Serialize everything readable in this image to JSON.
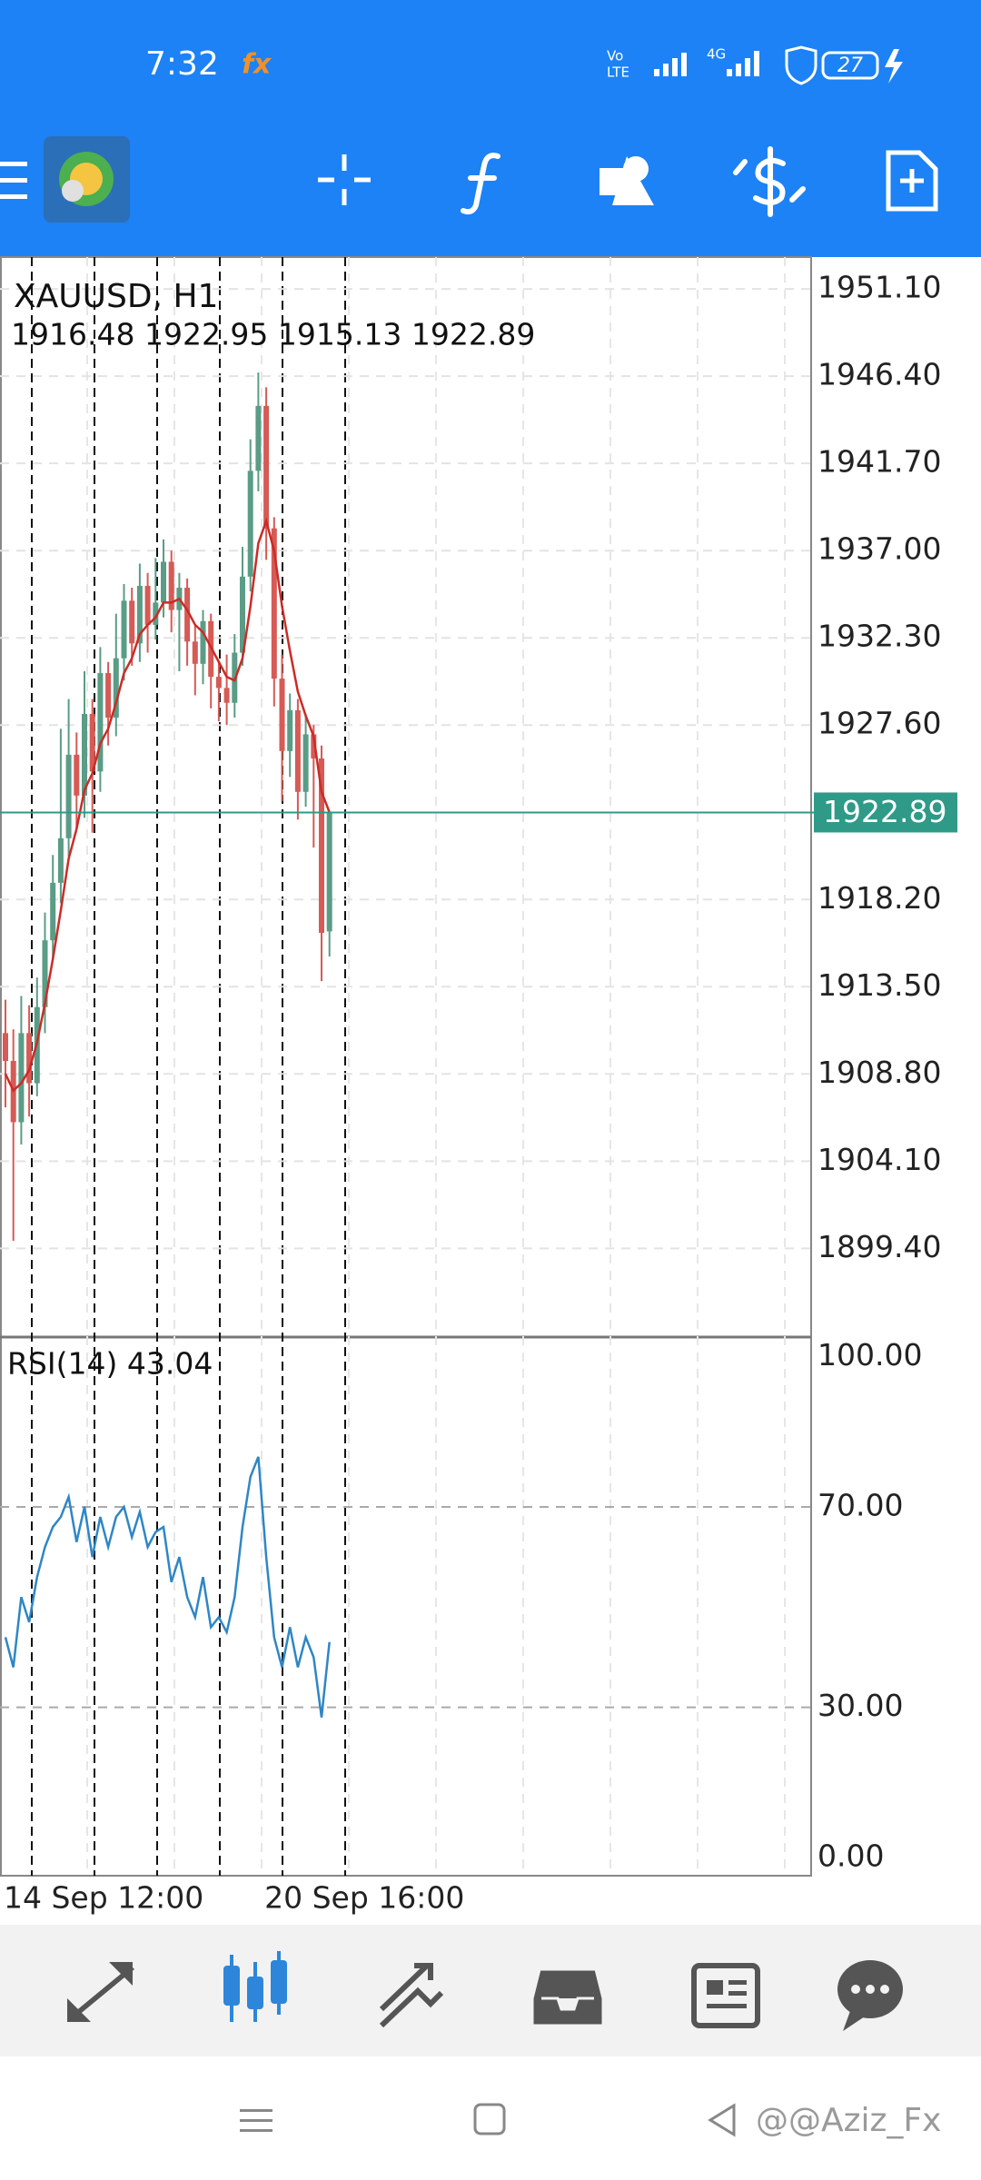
{
  "status_bar": {
    "time": "7:32",
    "app_badge": "fx",
    "volte_top": "Vo",
    "volte_bottom": "LTE",
    "network": "4G",
    "battery": "27"
  },
  "chart_data": [
    {
      "type": "candlestick",
      "title": "XAUUSD, H1",
      "subtitle": "1916.48 1922.95 1915.13 1922.89",
      "categories": [
        "14 Sep 12:00",
        null,
        null,
        null,
        null,
        null,
        null,
        null,
        null,
        null,
        null,
        null,
        null,
        null,
        null,
        null,
        null,
        null,
        null,
        null,
        null,
        null,
        null,
        null,
        null,
        null,
        null,
        null,
        null,
        null,
        null,
        null,
        null,
        "20 Sep 16:00",
        null,
        null,
        null,
        null,
        null,
        null,
        null,
        null
      ],
      "open": [
        1911.0,
        1909.5,
        1906.2,
        1911.0,
        1908.3,
        1912.4,
        1916.0,
        1919.1,
        1921.5,
        1926.0,
        1923.8,
        1928.2,
        1925.1,
        1930.4,
        1928.0,
        1931.2,
        1934.3,
        1932.0,
        1935.1,
        1933.0,
        1934.2,
        1936.4,
        1933.8,
        1935.0,
        1932.1,
        1930.9,
        1933.2,
        1930.2,
        1929.6,
        1928.8,
        1931.5,
        1935.6,
        1941.3,
        1944.8,
        1938.2,
        1930.1,
        1926.2,
        1928.4,
        1924.0,
        1927.1,
        1925.8,
        1916.48
      ],
      "high": [
        1912.8,
        1911.2,
        1913.0,
        1912.5,
        1914.0,
        1917.5,
        1920.6,
        1927.4,
        1929.0,
        1927.2,
        1930.5,
        1929.0,
        1931.8,
        1931.0,
        1933.6,
        1935.2,
        1935.0,
        1936.3,
        1935.8,
        1936.6,
        1937.6,
        1937.0,
        1935.8,
        1935.5,
        1933.0,
        1933.8,
        1933.6,
        1931.0,
        1931.4,
        1932.5,
        1937.2,
        1943.0,
        1946.6,
        1945.8,
        1938.8,
        1931.4,
        1929.3,
        1929.0,
        1928.2,
        1927.6,
        1926.5,
        1922.95
      ],
      "low": [
        1907.0,
        1899.8,
        1905.0,
        1906.5,
        1907.6,
        1911.0,
        1915.0,
        1918.0,
        1920.5,
        1922.0,
        1922.6,
        1921.8,
        1924.0,
        1926.5,
        1927.0,
        1930.0,
        1930.8,
        1931.0,
        1931.5,
        1932.2,
        1933.4,
        1932.6,
        1930.5,
        1930.8,
        1929.2,
        1929.8,
        1928.5,
        1927.8,
        1927.6,
        1928.0,
        1930.8,
        1934.8,
        1940.2,
        1936.5,
        1928.6,
        1923.5,
        1924.8,
        1922.5,
        1923.2,
        1921.0,
        1913.8,
        1915.13
      ],
      "close": [
        1909.5,
        1906.2,
        1911.0,
        1908.3,
        1912.4,
        1916.0,
        1919.1,
        1921.5,
        1926.0,
        1923.8,
        1928.2,
        1925.1,
        1930.4,
        1928.0,
        1931.2,
        1934.3,
        1932.0,
        1935.1,
        1933.0,
        1934.2,
        1936.4,
        1933.8,
        1935.0,
        1932.1,
        1930.9,
        1933.2,
        1930.2,
        1929.6,
        1928.8,
        1931.5,
        1935.6,
        1941.3,
        1944.8,
        1938.2,
        1930.1,
        1926.2,
        1928.4,
        1924.0,
        1927.1,
        1925.8,
        1916.4,
        1922.89
      ],
      "up_color": "#5a9c86",
      "down_color": "#d65a55",
      "ma": {
        "color": "#cc2b26",
        "values": [
          1908.8,
          1907.9,
          1908.3,
          1909.0,
          1910.5,
          1912.6,
          1915.0,
          1917.6,
          1920.4,
          1922.0,
          1924.1,
          1925.0,
          1926.6,
          1927.4,
          1928.8,
          1930.4,
          1931.2,
          1932.5,
          1933.0,
          1933.4,
          1934.2,
          1934.2,
          1934.4,
          1933.8,
          1933.0,
          1932.6,
          1931.8,
          1931.0,
          1930.2,
          1930.0,
          1931.2,
          1934.0,
          1937.4,
          1938.6,
          1937.0,
          1934.0,
          1931.6,
          1929.4,
          1928.1,
          1927.0,
          1924.0,
          1922.9
        ]
      },
      "current_price": {
        "value": 1922.89,
        "label": "1922.89"
      },
      "current_color": "#2f9a88",
      "ylim": [
        1894.62,
        1952.82
      ],
      "yticks": [
        {
          "value": 1951.1,
          "label": "1951.10"
        },
        {
          "value": 1946.4,
          "label": "1946.40"
        },
        {
          "value": 1941.7,
          "label": "1941.70"
        },
        {
          "value": 1937.0,
          "label": "1937.00"
        },
        {
          "value": 1932.3,
          "label": "1932.30"
        },
        {
          "value": 1927.6,
          "label": "1927.60"
        },
        {
          "value": 1918.2,
          "label": "1918.20"
        },
        {
          "value": 1913.5,
          "label": "1913.50"
        },
        {
          "value": 1908.8,
          "label": "1908.80"
        },
        {
          "value": 1904.1,
          "label": "1904.10"
        },
        {
          "value": 1899.4,
          "label": "1899.40"
        }
      ],
      "grid": true
    },
    {
      "type": "line",
      "title": "RSI(14) 43.04",
      "color": "#2e86c6",
      "values": [
        44,
        38,
        52,
        47,
        56,
        62,
        66,
        68,
        72,
        63,
        70,
        60,
        68,
        62,
        68,
        70,
        64,
        69,
        62,
        65,
        66,
        55,
        60,
        52,
        48,
        56,
        46,
        48,
        45,
        52,
        66,
        76,
        80,
        60,
        44,
        38,
        46,
        38,
        44,
        40,
        28,
        43.04
      ],
      "ylim": [
        -3.6,
        103.9
      ],
      "yticks": [
        {
          "value": 100,
          "label": "100.00"
        },
        {
          "value": 70,
          "label": "70.00"
        },
        {
          "value": 30,
          "label": "30.00"
        },
        {
          "value": 0,
          "label": "0.00"
        }
      ]
    }
  ],
  "watermark": "@@Aziz_Fx"
}
